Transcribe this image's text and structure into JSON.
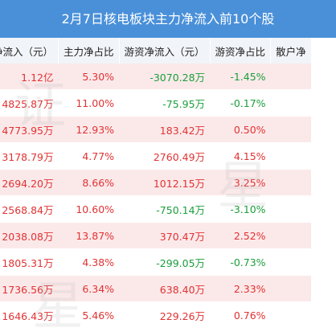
{
  "title": "2月7日核电板块主力净流入前10个股",
  "columns": [
    "主力净流入（元）",
    "主力净占比",
    "游资净流入（元）",
    "游资净占比",
    "散户净"
  ],
  "rows": [
    {
      "main": "1.12亿",
      "main_ratio": "5.30%",
      "hot": "-3070.28万",
      "hot_ratio": "-1.45%"
    },
    {
      "main": "4825.87万",
      "main_ratio": "11.00%",
      "hot": "-75.95万",
      "hot_ratio": "-0.17%"
    },
    {
      "main": "4773.95万",
      "main_ratio": "12.93%",
      "hot": "183.42万",
      "hot_ratio": "0.50%"
    },
    {
      "main": "3178.79万",
      "main_ratio": "4.77%",
      "hot": "2760.49万",
      "hot_ratio": "4.15%"
    },
    {
      "main": "2694.20万",
      "main_ratio": "8.66%",
      "hot": "1012.15万",
      "hot_ratio": "3.25%"
    },
    {
      "main": "2568.84万",
      "main_ratio": "10.60%",
      "hot": "-750.14万",
      "hot_ratio": "-3.10%"
    },
    {
      "main": "2038.08万",
      "main_ratio": "13.87%",
      "hot": "370.47万",
      "hot_ratio": "2.52%"
    },
    {
      "main": "1805.31万",
      "main_ratio": "4.38%",
      "hot": "-299.05万",
      "hot_ratio": "-0.73%"
    },
    {
      "main": "1736.56万",
      "main_ratio": "6.34%",
      "hot": "638.40万",
      "hot_ratio": "2.33%"
    },
    {
      "main": "1646.43万",
      "main_ratio": "5.46%",
      "hot": "229.26万",
      "hot_ratio": "0.76%"
    }
  ],
  "watermark": [
    "证",
    "星"
  ],
  "colors": {
    "header": "#4a90d9",
    "positive": "#e23232",
    "negative": "#1a9f3a",
    "row_band": "#fbe9ea"
  }
}
